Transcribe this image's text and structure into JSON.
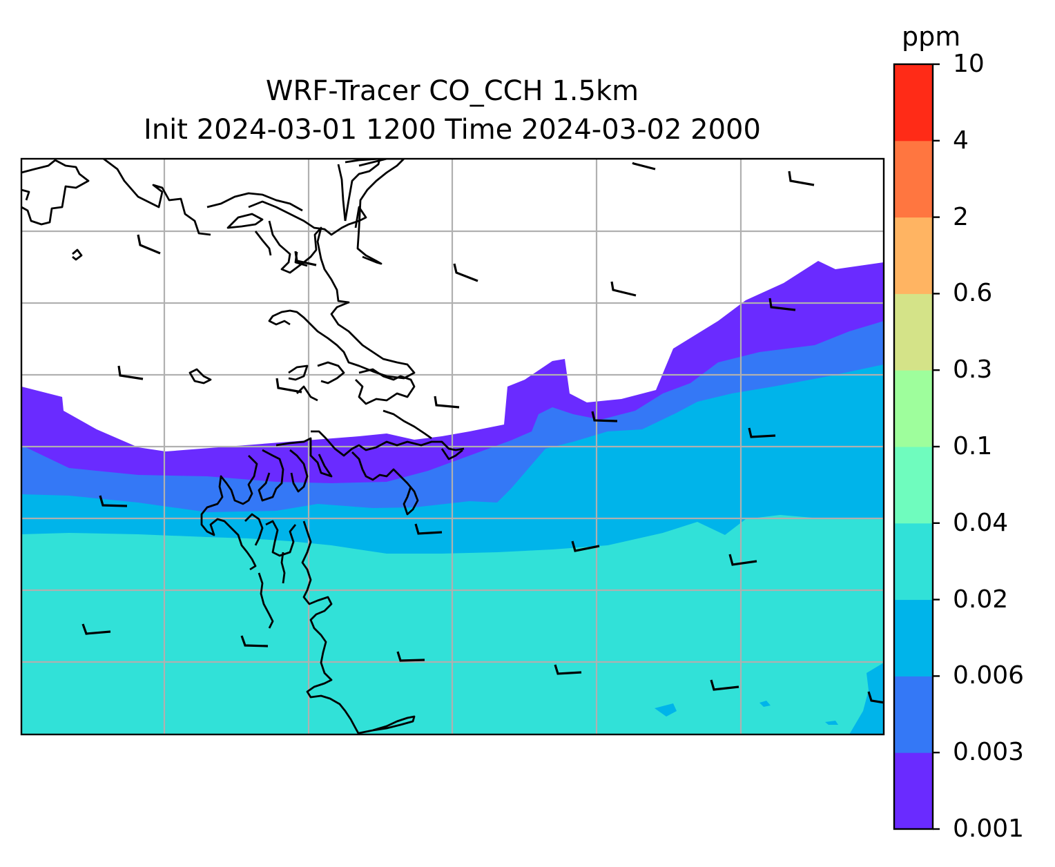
{
  "title": {
    "line1": "WRF-Tracer CO_CCH 1.5km",
    "line2": "Init 2024-03-01 1200 Time 2024-03-02 2000"
  },
  "colorbar": {
    "unit": "ppm",
    "levels": [
      "0.001",
      "0.003",
      "0.006",
      "0.02",
      "0.04",
      "0.1",
      "0.3",
      "0.6",
      "2",
      "4",
      "10"
    ],
    "colors": [
      "#6a2bff",
      "#3478f6",
      "#00b4ea",
      "#31e1d8",
      "#6ffcbe",
      "#9efe9c",
      "#d4e388",
      "#ffb462",
      "#ff7640",
      "#ff2b17"
    ]
  },
  "map": {
    "gridlines": true,
    "gridline_color": "#b0b0b0",
    "coastline_color": "#000000",
    "wind_barbs": true
  }
}
